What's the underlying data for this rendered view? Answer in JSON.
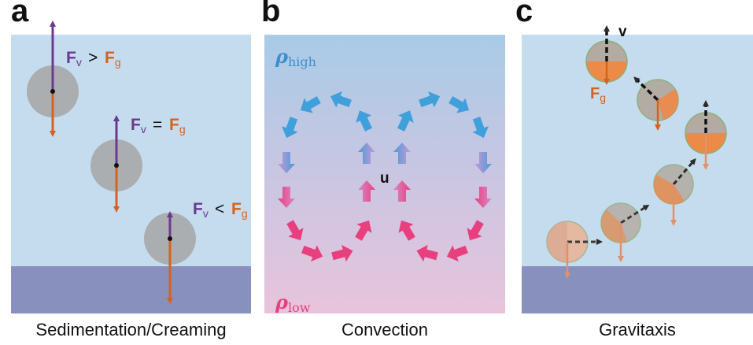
{
  "panels": [
    {
      "letter": "a",
      "caption": "Sedimentation/Creaming"
    },
    {
      "letter": "b",
      "caption": "Convection"
    },
    {
      "letter": "c",
      "caption": "Gravitaxis"
    }
  ],
  "panel_a": {
    "force_labels": [
      {
        "fv": "F",
        "fv_sub": "v",
        "op": ">",
        "fg": "F",
        "fg_sub": "g"
      },
      {
        "fv": "F",
        "fv_sub": "v",
        "op": "=",
        "fg": "F",
        "fg_sub": "g"
      },
      {
        "fv": "F",
        "fv_sub": "v",
        "op": "<",
        "fg": "F",
        "fg_sub": "g"
      }
    ]
  },
  "panel_b": {
    "rho_high": "ρ",
    "rho_high_sub": "high",
    "rho_low": "ρ",
    "rho_low_sub": "low",
    "velocity_label": "u"
  },
  "panel_c": {
    "velocity_label": "v",
    "gravity_label": "F",
    "gravity_sub": "g"
  },
  "colors": {
    "fluid": "#c5dcee",
    "sediment": "#8890be",
    "viscous_force": "#6a3a8e",
    "gravity_force": "#d5621e",
    "particle": "#a6a6a6",
    "rho_high": "#3a8fd0",
    "rho_low": "#e8407e"
  }
}
